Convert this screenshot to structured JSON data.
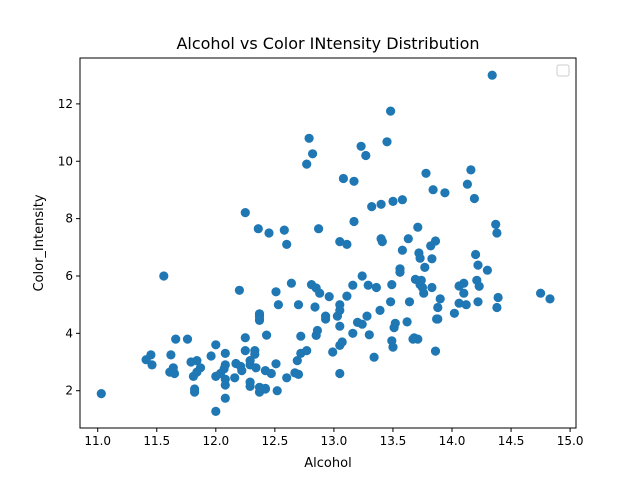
{
  "chart_data": {
    "type": "scatter",
    "title": "Alcohol vs Color INtensity Distribution",
    "xlabel": "Alcohol",
    "ylabel": "Color_Intensity",
    "xlim": [
      10.85,
      15.05
    ],
    "ylim": [
      0.7,
      13.6
    ],
    "xticks": [
      11.0,
      11.5,
      12.0,
      12.5,
      13.0,
      13.5,
      14.0,
      14.5,
      15.0
    ],
    "xtick_labels": [
      "11.0",
      "11.5",
      "12.0",
      "12.5",
      "13.0",
      "13.5",
      "14.0",
      "14.5",
      "15.0"
    ],
    "yticks": [
      2,
      4,
      6,
      8,
      10,
      12
    ],
    "ytick_labels": [
      "2",
      "4",
      "6",
      "8",
      "10",
      "12"
    ],
    "grid": false,
    "legend": "top-right (empty)",
    "marker_color": "#1f77b4",
    "points": [
      [
        14.23,
        5.64
      ],
      [
        13.2,
        4.38
      ],
      [
        13.16,
        5.68
      ],
      [
        14.37,
        7.8
      ],
      [
        13.24,
        4.32
      ],
      [
        14.2,
        6.75
      ],
      [
        14.39,
        5.25
      ],
      [
        14.06,
        5.05
      ],
      [
        14.83,
        5.2
      ],
      [
        13.86,
        7.22
      ],
      [
        14.1,
        5.75
      ],
      [
        14.12,
        5.0
      ],
      [
        13.75,
        5.6
      ],
      [
        14.75,
        5.4
      ],
      [
        14.38,
        7.5
      ],
      [
        13.63,
        7.3
      ],
      [
        14.3,
        6.2
      ],
      [
        13.83,
        6.6
      ],
      [
        14.19,
        8.7
      ],
      [
        13.64,
        5.1
      ],
      [
        14.06,
        5.65
      ],
      [
        12.93,
        4.5
      ],
      [
        13.71,
        3.8
      ],
      [
        12.85,
        3.93
      ],
      [
        13.5,
        3.52
      ],
      [
        13.05,
        3.58
      ],
      [
        13.39,
        4.8
      ],
      [
        13.3,
        3.95
      ],
      [
        13.87,
        4.5
      ],
      [
        14.02,
        4.7
      ],
      [
        13.73,
        5.7
      ],
      [
        13.58,
        6.9
      ],
      [
        13.68,
        3.84
      ],
      [
        13.76,
        5.4
      ],
      [
        13.51,
        4.2
      ],
      [
        13.48,
        5.1
      ],
      [
        13.28,
        4.6
      ],
      [
        13.05,
        4.25
      ],
      [
        13.07,
        3.7
      ],
      [
        14.22,
        5.1
      ],
      [
        13.56,
        6.13
      ],
      [
        13.41,
        7.2
      ],
      [
        13.88,
        4.5
      ],
      [
        13.24,
        6.0
      ],
      [
        13.05,
        5.0
      ],
      [
        14.21,
        5.85
      ],
      [
        14.38,
        4.9
      ],
      [
        13.9,
        5.2
      ],
      [
        14.1,
        5.4
      ],
      [
        13.94,
        8.9
      ],
      [
        13.05,
        7.2
      ],
      [
        13.83,
        5.6
      ],
      [
        13.82,
        7.05
      ],
      [
        13.77,
        6.3
      ],
      [
        13.74,
        5.85
      ],
      [
        13.56,
        6.25
      ],
      [
        14.22,
        6.38
      ],
      [
        13.29,
        5.68
      ],
      [
        13.72,
        6.8
      ],
      [
        12.37,
        1.95
      ],
      [
        12.33,
        3.27
      ],
      [
        12.64,
        5.75
      ],
      [
        13.67,
        3.8
      ],
      [
        12.37,
        4.45
      ],
      [
        12.17,
        2.95
      ],
      [
        12.37,
        4.6
      ],
      [
        13.11,
        5.3
      ],
      [
        12.37,
        4.68
      ],
      [
        13.34,
        3.17
      ],
      [
        12.21,
        2.85
      ],
      [
        12.29,
        3.05
      ],
      [
        13.86,
        3.38
      ],
      [
        13.49,
        3.74
      ],
      [
        12.99,
        3.35
      ],
      [
        11.96,
        3.21
      ],
      [
        11.66,
        3.8
      ],
      [
        13.03,
        4.6
      ],
      [
        11.84,
        2.65
      ],
      [
        12.33,
        3.4
      ],
      [
        12.7,
        2.57
      ],
      [
        12.0,
        2.5
      ],
      [
        12.72,
        3.9
      ],
      [
        12.08,
        2.2
      ],
      [
        13.05,
        4.8
      ],
      [
        11.84,
        3.05
      ],
      [
        12.67,
        2.62
      ],
      [
        12.16,
        2.45
      ],
      [
        11.65,
        2.6
      ],
      [
        11.64,
        2.8
      ],
      [
        12.08,
        1.74
      ],
      [
        12.08,
        2.4
      ],
      [
        12.0,
        3.6
      ],
      [
        12.69,
        3.05
      ],
      [
        12.29,
        2.15
      ],
      [
        11.62,
        3.25
      ],
      [
        12.47,
        2.6
      ],
      [
        11.81,
        2.5
      ],
      [
        12.29,
        2.9
      ],
      [
        12.37,
        4.5
      ],
      [
        12.29,
        2.3
      ],
      [
        12.08,
        3.3
      ],
      [
        12.6,
        2.45
      ],
      [
        12.34,
        2.8
      ],
      [
        11.82,
        2.06
      ],
      [
        12.51,
        2.94
      ],
      [
        12.42,
        2.7
      ],
      [
        12.25,
        3.4
      ],
      [
        12.72,
        3.3
      ],
      [
        12.22,
        2.7
      ],
      [
        11.61,
        2.65
      ],
      [
        11.46,
        2.9
      ],
      [
        12.52,
        2.0
      ],
      [
        11.76,
        3.8
      ],
      [
        11.41,
        3.08
      ],
      [
        12.08,
        2.9
      ],
      [
        11.03,
        1.9
      ],
      [
        11.82,
        1.95
      ],
      [
        12.42,
        2.06
      ],
      [
        12.77,
        3.4
      ],
      [
        12.0,
        1.28
      ],
      [
        11.45,
        3.25
      ],
      [
        11.56,
        6.0
      ],
      [
        12.42,
        2.08
      ],
      [
        13.05,
        2.6
      ],
      [
        11.87,
        2.8
      ],
      [
        12.07,
        2.76
      ],
      [
        12.43,
        3.94
      ],
      [
        11.79,
        3.0
      ],
      [
        12.37,
        2.12
      ],
      [
        12.04,
        2.6
      ],
      [
        12.86,
        4.1
      ],
      [
        12.88,
        5.4
      ],
      [
        12.81,
        5.7
      ],
      [
        12.7,
        5.0
      ],
      [
        12.51,
        5.45
      ],
      [
        12.6,
        7.1
      ],
      [
        12.25,
        3.85
      ],
      [
        12.53,
        5.0
      ],
      [
        13.49,
        5.7
      ],
      [
        12.84,
        4.92
      ],
      [
        12.93,
        4.6
      ],
      [
        13.36,
        5.6
      ],
      [
        13.52,
        4.35
      ],
      [
        13.62,
        4.4
      ],
      [
        12.25,
        8.21
      ],
      [
        13.16,
        4.0
      ],
      [
        13.88,
        4.9
      ],
      [
        12.87,
        7.65
      ],
      [
        13.32,
        8.42
      ],
      [
        13.08,
        9.4
      ],
      [
        13.5,
        8.6
      ],
      [
        12.79,
        10.8
      ],
      [
        13.11,
        7.1
      ],
      [
        13.23,
        10.52
      ],
      [
        12.58,
        7.6
      ],
      [
        13.17,
        7.9
      ],
      [
        13.84,
        9.01
      ],
      [
        12.45,
        7.5
      ],
      [
        14.34,
        13.0
      ],
      [
        13.48,
        11.75
      ],
      [
        12.36,
        7.65
      ],
      [
        13.69,
        5.88
      ],
      [
        12.85,
        5.58
      ],
      [
        12.96,
        5.28
      ],
      [
        13.78,
        9.58
      ],
      [
        13.73,
        6.62
      ],
      [
        13.45,
        10.68
      ],
      [
        12.82,
        10.26
      ],
      [
        13.58,
        8.66
      ],
      [
        13.4,
        8.5
      ],
      [
        12.2,
        5.5
      ],
      [
        12.77,
        9.899999
      ],
      [
        14.16,
        9.7
      ],
      [
        13.71,
        7.7
      ],
      [
        13.4,
        7.3
      ],
      [
        13.27,
        10.2
      ],
      [
        13.17,
        9.3
      ],
      [
        14.13,
        9.2
      ]
    ]
  }
}
